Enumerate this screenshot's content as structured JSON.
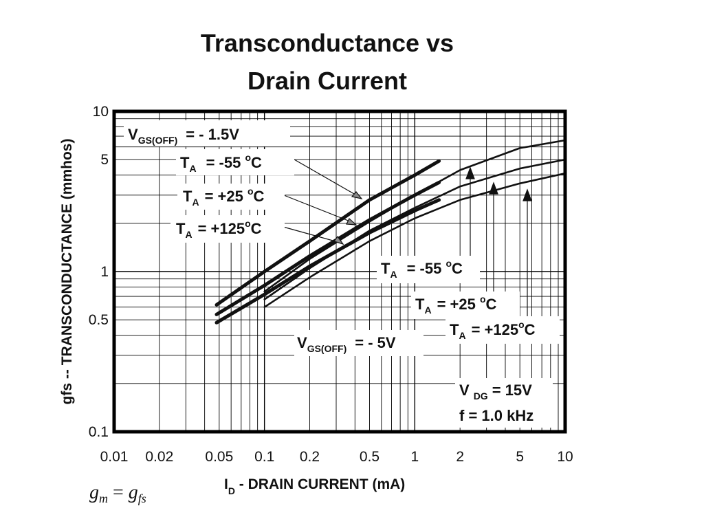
{
  "chart_data": {
    "type": "line",
    "title_line1": "Transconductance vs",
    "title_line2": "Drain Current",
    "xlabel_main": "I",
    "xlabel_sub": "D",
    "xlabel_rest": " -  DRAIN CURRENT (mA)",
    "ylabel": "gfs -- TRANSCONDUCTANCE (mmhos)",
    "xscale": "log",
    "yscale": "log",
    "xlim": [
      0.01,
      10
    ],
    "ylim": [
      0.1,
      10
    ],
    "grid": true,
    "x_ticks": [
      {
        "v": 0.01,
        "label": "0.01"
      },
      {
        "v": 0.02,
        "label": "0.02"
      },
      {
        "v": 0.05,
        "label": "0.05"
      },
      {
        "v": 0.1,
        "label": "0.1"
      },
      {
        "v": 0.2,
        "label": "0.2"
      },
      {
        "v": 0.5,
        "label": "0.5"
      },
      {
        "v": 1,
        "label": "1"
      },
      {
        "v": 2,
        "label": "2"
      },
      {
        "v": 5,
        "label": "5"
      },
      {
        "v": 10,
        "label": "10"
      }
    ],
    "y_ticks": [
      {
        "v": 0.1,
        "label": "0.1"
      },
      {
        "v": 0.5,
        "label": "0.5"
      },
      {
        "v": 1,
        "label": "1"
      },
      {
        "v": 5,
        "label": "5"
      },
      {
        "v": 10,
        "label": "10"
      }
    ],
    "series": [
      {
        "group": "VGS(OFF) = -1.5V",
        "temp": "TA = -55 °C",
        "weight": "heavy",
        "x": [
          0.048,
          0.1,
          0.2,
          0.5,
          1,
          1.45
        ],
        "y": [
          0.62,
          1.0,
          1.55,
          2.8,
          4.0,
          4.9
        ]
      },
      {
        "group": "VGS(OFF) = -1.5V",
        "temp": "TA = +25 °C",
        "weight": "heavy",
        "x": [
          0.048,
          0.1,
          0.2,
          0.5,
          1,
          1.45
        ],
        "y": [
          0.54,
          0.82,
          1.25,
          2.1,
          3.0,
          3.6
        ]
      },
      {
        "group": "VGS(OFF) = -1.5V",
        "temp": "TA = +125 °C",
        "weight": "heavy",
        "x": [
          0.048,
          0.1,
          0.2,
          0.5,
          1,
          1.45
        ],
        "y": [
          0.48,
          0.72,
          1.08,
          1.75,
          2.4,
          2.8
        ]
      },
      {
        "group": "VGS(OFF) = - 5V",
        "temp": "TA = -55 °C",
        "weight": "light",
        "x": [
          0.1,
          0.2,
          0.5,
          1,
          2,
          5,
          10
        ],
        "y": [
          0.75,
          1.2,
          2.05,
          3.0,
          4.3,
          5.9,
          6.6
        ]
      },
      {
        "group": "VGS(OFF) = - 5V",
        "temp": "TA = +25 °C",
        "weight": "light",
        "x": [
          0.1,
          0.2,
          0.5,
          1,
          2,
          5,
          10
        ],
        "y": [
          0.67,
          1.05,
          1.8,
          2.5,
          3.4,
          4.4,
          5.0
        ]
      },
      {
        "group": "VGS(OFF) = - 5V",
        "temp": "TA = +125 °C",
        "weight": "light",
        "x": [
          0.1,
          0.2,
          0.5,
          1,
          2,
          5,
          10
        ],
        "y": [
          0.6,
          0.92,
          1.55,
          2.15,
          2.8,
          3.55,
          4.1
        ]
      }
    ],
    "annotations": {
      "vgs1_main": "V",
      "vgs1_sub": "GS(OFF)",
      "vgs1_val": "= - 1.5V",
      "ta1_main": "T",
      "ta1_sub": "A",
      "ta1_val": "= -55 ",
      "ta1_deg": "o",
      "ta1_unit": "C",
      "ta2_main": "T",
      "ta2_sub": "A",
      "ta2_val": "= +25 ",
      "ta2_deg": "o",
      "ta2_unit": "C",
      "ta3_main": "T",
      "ta3_sub": "A",
      "ta3_val": "= +125",
      "ta3_deg": "o",
      "ta3_unit": "C",
      "tb1_main": "T",
      "tb1_sub": "A",
      "tb1_val": "= -55 ",
      "tb1_deg": "o",
      "tb1_unit": "C",
      "tb2_main": "T",
      "tb2_sub": "A",
      "tb2_val": "= +25 ",
      "tb2_deg": "o",
      "tb2_unit": "C",
      "tb3_main": "T",
      "tb3_sub": "A",
      "tb3_val": "= +125",
      "tb3_deg": "o",
      "tb3_unit": "C",
      "vgs2_main": "V",
      "vgs2_sub": "GS(OFF)",
      "vgs2_val": "= - 5V",
      "vdg_main": "V",
      "vdg_sub": "DG",
      "vdg_val": "= 15V",
      "freq": "f = 1.0 kHz"
    },
    "formula": {
      "g": "g",
      "m": "m",
      "eq": " = ",
      "g2": "g",
      "fs": "fs"
    }
  }
}
